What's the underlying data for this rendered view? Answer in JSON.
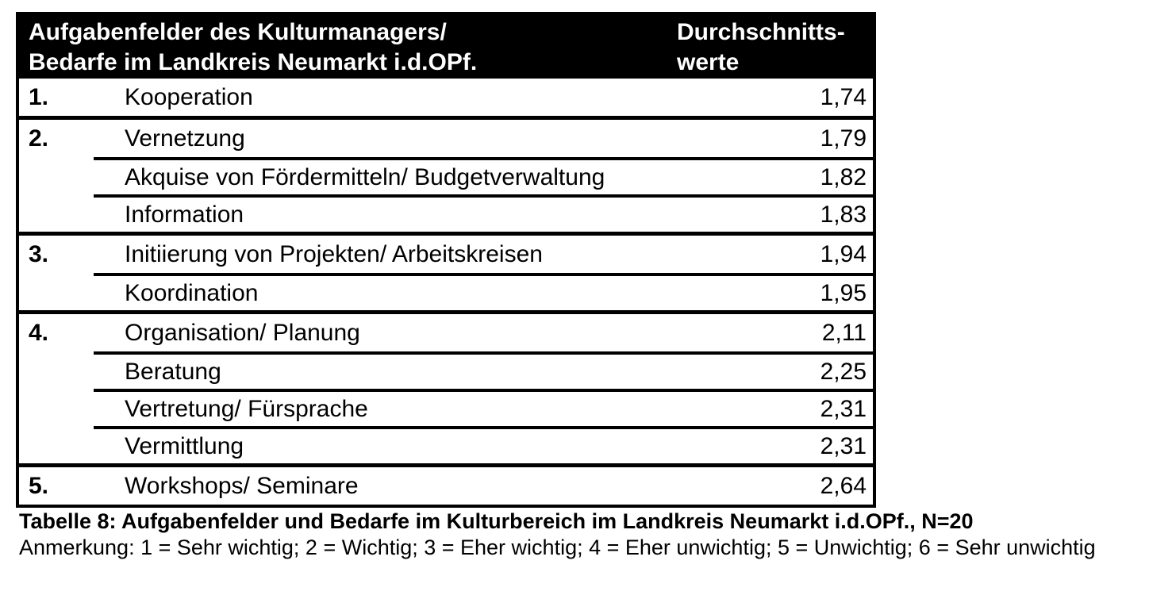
{
  "colors": {
    "header_bg": "#000000",
    "header_text": "#ffffff",
    "border": "#000000",
    "body_bg": "#ffffff",
    "body_text": "#000000"
  },
  "table": {
    "header": {
      "title_line1": "Aufgabenfelder des Kulturmanagers/",
      "title_line2": "Bedarfe im Landkreis Neumarkt i.d.OPf.",
      "value_line1": "Durchschnitts-",
      "value_line2": "werte"
    },
    "groups": [
      {
        "rank": "1.",
        "items": [
          {
            "label": "Kooperation",
            "value": "1,74"
          }
        ]
      },
      {
        "rank": "2.",
        "items": [
          {
            "label": "Vernetzung",
            "value": "1,79"
          },
          {
            "label": "Akquise von Fördermitteln/ Budgetverwaltung",
            "value": "1,82"
          },
          {
            "label": "Information",
            "value": "1,83"
          }
        ]
      },
      {
        "rank": "3.",
        "items": [
          {
            "label": "Initiierung von Projekten/ Arbeitskreisen",
            "value": "1,94"
          },
          {
            "label": "Koordination",
            "value": "1,95"
          }
        ]
      },
      {
        "rank": "4.",
        "items": [
          {
            "label": "Organisation/ Planung",
            "value": "2,11"
          },
          {
            "label": "Beratung",
            "value": "2,25"
          },
          {
            "label": "Vertretung/ Fürsprache",
            "value": "2,31"
          },
          {
            "label": "Vermittlung",
            "value": "2,31"
          }
        ]
      },
      {
        "rank": "5.",
        "items": [
          {
            "label": "Workshops/ Seminare",
            "value": "2,64"
          }
        ]
      }
    ]
  },
  "caption": {
    "title": "Tabelle 8: Aufgabenfelder und Bedarfe im Kulturbereich im Landkreis Neumarkt i.d.OPf., N=20",
    "note": "Anmerkung: 1 = Sehr wichtig; 2 = Wichtig; 3 = Eher wichtig; 4 = Eher unwichtig; 5 = Unwichtig; 6 = Sehr unwichtig"
  }
}
